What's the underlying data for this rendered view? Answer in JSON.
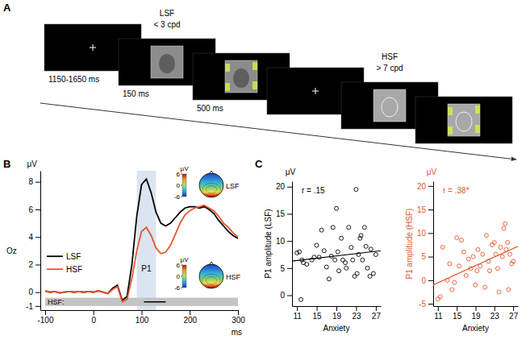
{
  "panel_labels": [
    "A",
    "B",
    "C"
  ],
  "diagram": {
    "durations": [
      "1150-1650 ms",
      "150 ms",
      "500 ms"
    ],
    "conditions": [
      {
        "name": "LSF",
        "filter": "< 3 cpd"
      },
      {
        "name": "HSF",
        "filter": "> 7 cpd"
      }
    ]
  },
  "chart_data": [
    {
      "type": "line",
      "x": [
        -100,
        -90,
        -80,
        -70,
        -60,
        -50,
        -40,
        -30,
        -20,
        -10,
        0,
        10,
        20,
        30,
        40,
        50,
        60,
        70,
        80,
        90,
        100,
        110,
        120,
        130,
        140,
        150,
        160,
        170,
        180,
        190,
        200,
        210,
        220,
        230,
        240,
        250,
        260,
        270,
        280,
        290,
        300
      ],
      "series": [
        {
          "name": "LSF",
          "color": "#000000",
          "values": [
            0.1,
            0.0,
            0.05,
            -0.05,
            0.0,
            0.05,
            0.0,
            0.05,
            0.0,
            0.05,
            0.0,
            0.1,
            0.0,
            -0.1,
            0.3,
            0.5,
            -0.6,
            -0.3,
            2.0,
            5.5,
            7.8,
            8.2,
            7.2,
            5.8,
            5.0,
            4.8,
            5.0,
            5.4,
            5.8,
            6.1,
            6.2,
            6.2,
            6.1,
            6.2,
            6.0,
            5.7,
            5.2,
            4.8,
            4.4,
            4.1,
            3.9
          ]
        },
        {
          "name": "HSF",
          "color": "#e4572e",
          "values": [
            0.1,
            0.0,
            0.05,
            -0.05,
            0.0,
            0.05,
            0.0,
            0.05,
            0.0,
            0.05,
            0.0,
            0.1,
            0.0,
            -0.1,
            0.2,
            0.4,
            -0.7,
            -0.5,
            1.0,
            3.0,
            4.4,
            4.7,
            4.1,
            3.2,
            2.8,
            2.9,
            3.4,
            4.2,
            5.0,
            5.6,
            5.9,
            6.1,
            6.2,
            6.3,
            6.1,
            5.9,
            5.5,
            5.0,
            4.7,
            4.3,
            4.0
          ]
        }
      ],
      "xlim": [
        -110,
        300
      ],
      "xticks": [
        -100,
        0,
        100,
        200,
        300
      ],
      "ylim": [
        -1.3,
        8.8
      ],
      "yticks": [
        -1,
        0,
        2,
        4,
        6,
        8
      ],
      "x_label": "ms",
      "y_label": "μV",
      "channel": "Oz",
      "legend": "lower left",
      "window": {
        "label": "P1",
        "range": [
          90,
          130
        ],
        "label_value": 1.5
      },
      "significance": {
        "label": "HSF:",
        "range": [
          -100,
          300
        ],
        "band": [
          -1,
          -0.4
        ],
        "segment": [
          105,
          150
        ],
        "segment_value": -0.7
      },
      "topomaps": [
        {
          "label": "LSF",
          "colorbar": {
            "range": [
              -6,
              6
            ],
            "ticks": [
              6,
              0,
              -6
            ],
            "label": "μV"
          }
        },
        {
          "label": "HSF",
          "colorbar": {
            "range": [
              -6,
              6
            ],
            "ticks": [
              6,
              0,
              -6
            ],
            "label": "μV"
          }
        }
      ]
    },
    {
      "type": "scatter",
      "color": "#000000",
      "marker": "open-circle",
      "x": [
        11,
        11.5,
        11.8,
        12,
        12.3,
        13,
        14,
        14.5,
        15,
        15.5,
        16,
        16.5,
        17,
        17.5,
        18,
        18.3,
        18.7,
        19,
        19.3,
        19.5,
        20,
        20.3,
        20.8,
        21,
        21.5,
        22,
        22.3,
        22.7,
        23,
        23.2,
        23.5,
        23.8,
        24,
        24.3,
        24.7,
        25,
        25.3,
        25.8,
        26,
        26.5,
        27
      ],
      "values": [
        7.8,
        8.0,
        -0.8,
        6.5,
        6.0,
        5.7,
        6.5,
        7.0,
        9.2,
        7.0,
        12.0,
        8.2,
        5.2,
        3.0,
        7.2,
        12.5,
        6.5,
        16.0,
        8.0,
        4.5,
        10.5,
        6.5,
        6.0,
        5.0,
        12.5,
        8.8,
        6.5,
        3.5,
        19.5,
        4.0,
        7.5,
        10.5,
        11.0,
        6.5,
        12.5,
        9.0,
        5.0,
        3.5,
        8.5,
        4.0,
        7.5
      ],
      "xlim": [
        10,
        28
      ],
      "xticks": [
        11,
        15,
        19,
        23,
        27
      ],
      "ylim": [
        -2,
        21
      ],
      "yticks": [
        0,
        5,
        10,
        15,
        20
      ],
      "x_label": "Anxiety",
      "y_label": "P1 amplitude (LSF)",
      "y_unit": "μV",
      "annotation": "r = .15",
      "fit": {
        "x": [
          10,
          28
        ],
        "y": [
          6.3,
          8.2
        ]
      }
    },
    {
      "type": "scatter",
      "color": "#e4572e",
      "marker": "open-circle",
      "x": [
        11,
        11.5,
        12,
        13,
        13.5,
        14,
        14.5,
        15,
        15.5,
        16,
        16.5,
        17,
        17.5,
        18,
        18.5,
        19,
        19.3,
        19.5,
        20,
        20.5,
        21,
        21.3,
        21.7,
        22,
        22.5,
        23,
        23.3,
        23.7,
        24,
        24.3,
        24.7,
        25,
        25.3,
        25.5,
        25.8,
        26,
        26.3,
        26.7,
        27
      ],
      "values": [
        -4.0,
        -3.5,
        7.0,
        0,
        3.5,
        -2.0,
        -0.5,
        9.0,
        3.0,
        8.5,
        6.0,
        1.0,
        4.5,
        2.5,
        5.0,
        -1.0,
        2.0,
        6.5,
        3.0,
        5.5,
        -1.5,
        9.5,
        4.0,
        2.0,
        7.5,
        8.0,
        5.5,
        2.5,
        -2.5,
        7.0,
        5.0,
        11.0,
        12.0,
        6.5,
        8.0,
        -2.0,
        5.5,
        3.5,
        4.0
      ],
      "xlim": [
        10,
        28
      ],
      "xticks": [
        11,
        15,
        19,
        23,
        27
      ],
      "ylim": [
        -5.5,
        21
      ],
      "yticks": [
        -5,
        0,
        5,
        10,
        15,
        20
      ],
      "x_label": "Anxiety",
      "y_label": "P1 amplitude (HSF)",
      "y_unit": "μV",
      "annotation": "r = .38*",
      "fit": {
        "x": [
          10,
          28
        ],
        "y": [
          -1.0,
          7.2
        ]
      }
    }
  ]
}
